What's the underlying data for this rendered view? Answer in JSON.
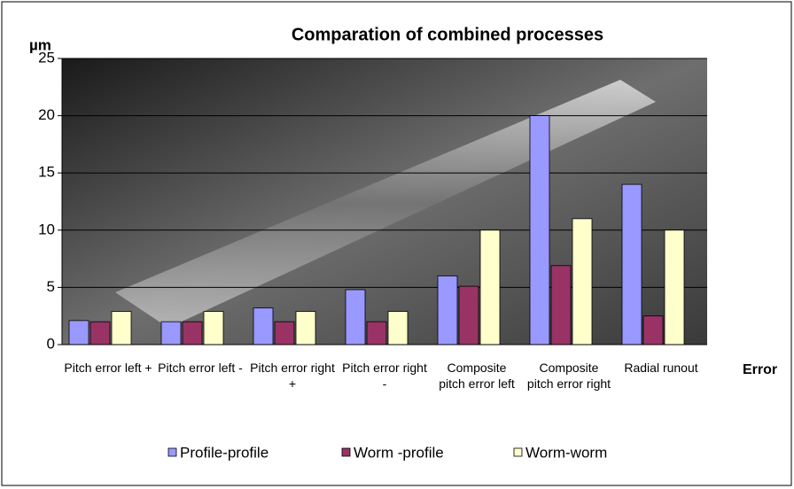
{
  "chart_data": {
    "type": "bar",
    "title": "Comparation of combined processes",
    "y_label": "µm",
    "x_label": "Error",
    "categories": [
      "Pitch error left +",
      "Pitch error left -",
      "Pitch error right +",
      "Pitch error right -",
      "Composite pitch error left",
      "Composite pitch error right",
      "Radial runout"
    ],
    "series": [
      {
        "name": "Profile-profile",
        "color": "#9999ff",
        "values": [
          2.1,
          2,
          3.2,
          4.8,
          6,
          20,
          14
        ]
      },
      {
        "name": "Worm -profile",
        "color": "#993366",
        "values": [
          2,
          2,
          2,
          2,
          5.1,
          6.9,
          2.5
        ]
      },
      {
        "name": "Worm-worm",
        "color": "#ffffcc",
        "values": [
          2.9,
          2.9,
          2.9,
          2.9,
          10,
          11,
          10
        ]
      }
    ],
    "ylim": [
      0,
      25
    ],
    "yticks": [
      0,
      5,
      10,
      15,
      20,
      25
    ],
    "grid": true,
    "legend": "bottom"
  }
}
